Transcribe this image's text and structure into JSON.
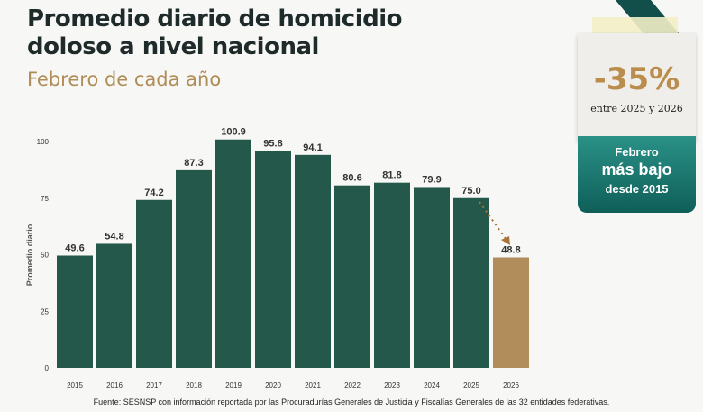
{
  "header": {
    "title_line1": "Promedio diario de homicidio",
    "title_line2": "doloso a nivel nacional",
    "subtitle": "Febrero de cada año"
  },
  "callout": {
    "percent": "-35%",
    "period": "entre 2025 y 2026",
    "line1": "Febrero",
    "line2": "más bajo",
    "line3": "desde 2015"
  },
  "source": "Fuente: SESNSP con información reportada por las Procuradurías Generales de Justicia y Fiscalías Generales de las 32 entidades federativas.",
  "chart_data": {
    "type": "bar",
    "title": "Promedio diario de homicidio doloso a nivel nacional",
    "ylabel": "Promedio diario",
    "xlabel": "",
    "categories": [
      "2015",
      "2016",
      "2017",
      "2018",
      "2019",
      "2020",
      "2021",
      "2022",
      "2023",
      "2024",
      "2025",
      "2026"
    ],
    "values": [
      49.6,
      54.8,
      74.2,
      87.3,
      100.9,
      95.8,
      94.1,
      80.6,
      81.8,
      79.9,
      75.0,
      48.8
    ],
    "labels": [
      "49.6",
      "54.8",
      "74.2",
      "87.3",
      "100.9",
      "95.8",
      "94.1",
      "80.6",
      "81.8",
      "79.9",
      "75.0",
      "48.8"
    ],
    "ylim": [
      0,
      100
    ],
    "yticks": [
      0,
      25,
      50,
      75,
      100
    ],
    "grid": false,
    "colors": {
      "default": "#24584a",
      "highlight": "#b08d5b",
      "arrow": "#a7753a"
    }
  }
}
